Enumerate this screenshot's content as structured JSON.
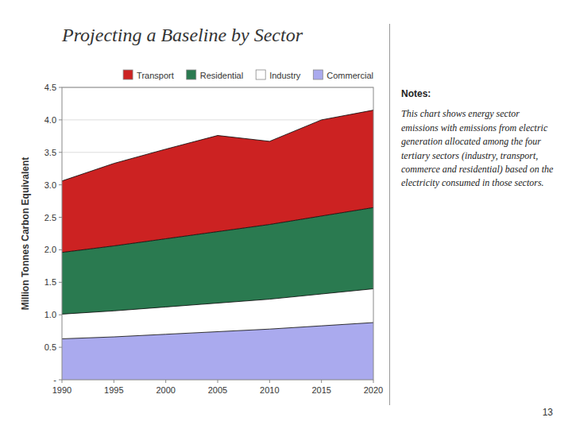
{
  "chart_data": {
    "type": "area",
    "stacked": true,
    "title": "Projecting a Baseline by Sector",
    "y_label": "Million Tonnes Carbon Equivalent",
    "x": [
      1990,
      1995,
      2000,
      2005,
      2010,
      2015,
      2020
    ],
    "series": [
      {
        "name": "Commercial",
        "color": "#aaaaee",
        "values": [
          0.63,
          0.66,
          0.7,
          0.74,
          0.78,
          0.83,
          0.88
        ]
      },
      {
        "name": "Industry",
        "color": "#ffffff",
        "values": [
          0.38,
          0.4,
          0.42,
          0.44,
          0.46,
          0.49,
          0.52
        ]
      },
      {
        "name": "Residential",
        "color": "#2a7a50",
        "values": [
          0.95,
          1.0,
          1.05,
          1.1,
          1.15,
          1.2,
          1.25
        ]
      },
      {
        "name": "Transport",
        "color": "#cc2222",
        "values": [
          1.1,
          1.27,
          1.38,
          1.48,
          1.28,
          1.48,
          1.5
        ]
      }
    ],
    "xlim": [
      1990,
      2020
    ],
    "xticks": [
      1990,
      1995,
      2000,
      2005,
      2010,
      2015,
      2020
    ],
    "ylim": [
      0,
      4.5
    ],
    "yticks": [
      {
        "value": 0,
        "label": "-"
      },
      0.5,
      {
        "value": 1.0,
        "label": "1.0"
      },
      1.5,
      {
        "value": 2.0,
        "label": "2.0"
      },
      2.5,
      {
        "value": 3.0,
        "label": "3.0"
      },
      3.5,
      {
        "value": 4.0,
        "label": "4.0"
      },
      4.5
    ],
    "grid": true,
    "legend": "upper right",
    "annotations": [
      "Notes:",
      "This chart shows energy sector emissions with emissions from electric generation allocated among the four tertiary sectors (industry, transport, commerce and residential) based on the electricity consumed in those sectors.",
      "13"
    ]
  }
}
